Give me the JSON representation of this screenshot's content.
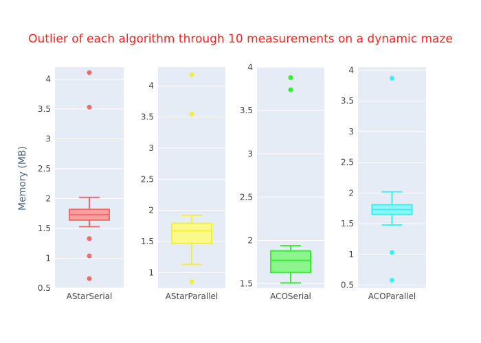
{
  "chart_data": {
    "type": "box",
    "title": "Outlier of each algorithm through 10 measurements on a dynamic maze",
    "ylabel": "Memory (MB)",
    "panels": [
      {
        "name": "AStarSerial",
        "color": "#ef6b6b",
        "fill": "#f6a0a0",
        "ylim": [
          0.5,
          4.2
        ],
        "ticks": [
          0.5,
          1,
          1.5,
          2,
          2.5,
          3,
          3.5,
          4
        ],
        "tick_labels": [
          "0.5",
          "1",
          "1.5",
          "2",
          "2.5",
          "3",
          "3.5",
          "4"
        ],
        "whisker_low": 1.53,
        "q1": 1.64,
        "median": 1.73,
        "q3": 1.82,
        "whisker_high": 2.02,
        "outliers": [
          4.11,
          3.53,
          1.33,
          1.04,
          0.66
        ]
      },
      {
        "name": "AStarParallel",
        "color": "#f0f03c",
        "fill": "#fafa8c",
        "ylim": [
          0.75,
          4.3
        ],
        "ticks": [
          1,
          1.5,
          2,
          2.5,
          3,
          3.5,
          4
        ],
        "tick_labels": [
          "1",
          "1.5",
          "2",
          "2.5",
          "3",
          "3.5",
          "4"
        ],
        "whisker_low": 1.13,
        "q1": 1.47,
        "median": 1.67,
        "q3": 1.79,
        "whisker_high": 1.92,
        "outliers": [
          4.18,
          3.55,
          0.85
        ]
      },
      {
        "name": "ACOSerial",
        "color": "#33ee33",
        "fill": "#8ef48e",
        "ylim": [
          1.45,
          4.0
        ],
        "ticks": [
          1.5,
          2,
          2.5,
          3,
          3.5,
          4
        ],
        "tick_labels": [
          "1.5",
          "2",
          "2.5",
          "3",
          "3.5",
          "4"
        ],
        "whisker_low": 1.51,
        "q1": 1.63,
        "median": 1.77,
        "q3": 1.88,
        "whisker_high": 1.94,
        "outliers": [
          3.88,
          3.74
        ]
      },
      {
        "name": "ACOParallel",
        "color": "#3cf0f0",
        "fill": "#8ef4f4",
        "ylim": [
          0.45,
          4.05
        ],
        "ticks": [
          0.5,
          1,
          1.5,
          2,
          2.5,
          3,
          3.5,
          4
        ],
        "tick_labels": [
          "0.5",
          "1",
          "1.5",
          "2",
          "2.5",
          "3",
          "3.5",
          "4"
        ],
        "whisker_low": 1.48,
        "q1": 1.65,
        "median": 1.73,
        "q3": 1.81,
        "whisker_high": 2.02,
        "outliers": [
          3.87,
          1.03,
          0.58
        ]
      }
    ],
    "grid": true,
    "legend": "none",
    "colors": {
      "title": "#ff2222",
      "axis_text": "#444444",
      "plot_bg": "#e5ecf6",
      "grid": "#ffffff"
    }
  }
}
